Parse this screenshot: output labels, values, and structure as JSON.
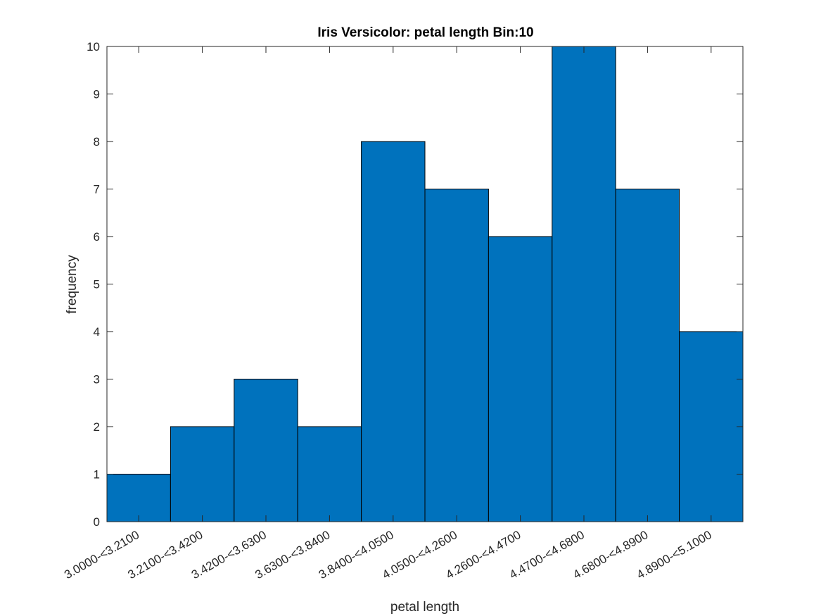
{
  "chart_data": {
    "type": "bar",
    "title": "Iris Versicolor: petal length Bin:10",
    "xlabel": "petal length",
    "ylabel": "frequency",
    "categories": [
      "3.0000-<3.2100",
      "3.2100-<3.4200",
      "3.4200-<3.6300",
      "3.6300-<3.8400",
      "3.8400-<4.0500",
      "4.0500-<4.2600",
      "4.2600-<4.4700",
      "4.4700-<4.6800",
      "4.6800-<4.8900",
      "4.8900-<5.1000"
    ],
    "values": [
      1,
      2,
      3,
      2,
      8,
      7,
      6,
      10,
      7,
      4
    ],
    "ylim": [
      0,
      10
    ],
    "yticks": [
      "0",
      "1",
      "2",
      "3",
      "4",
      "5",
      "6",
      "7",
      "8",
      "9",
      "10"
    ],
    "bar_color": "#0072BD",
    "grid": false,
    "legend": "none"
  }
}
